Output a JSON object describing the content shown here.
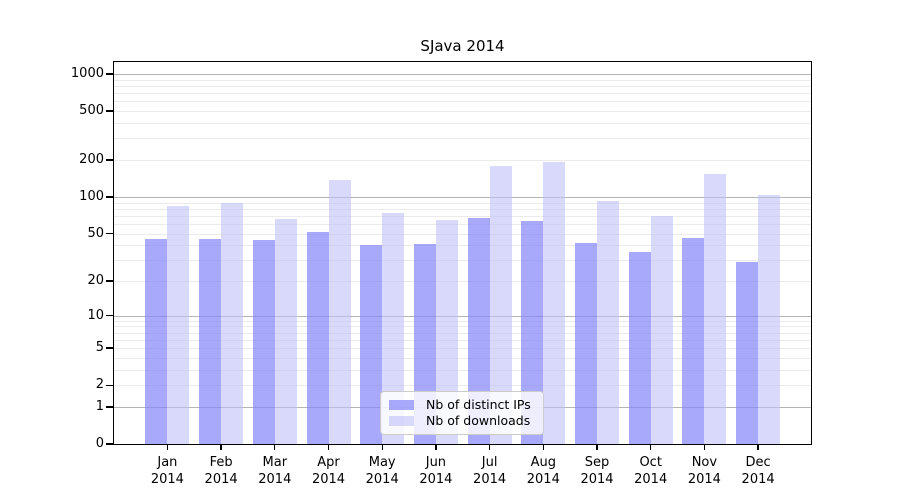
{
  "chart_data": {
    "type": "bar",
    "title": "SJava 2014",
    "categories": [
      "Jan 2014",
      "Feb 2014",
      "Mar 2014",
      "Apr 2014",
      "May 2014",
      "Jun 2014",
      "Jul 2014",
      "Aug 2014",
      "Sep 2014",
      "Oct 2014",
      "Nov 2014",
      "Dec 2014"
    ],
    "series": [
      {
        "name": "Nb of distinct IPs",
        "color": "rgba(132,132,250,0.7)",
        "values": [
          45,
          45,
          44,
          51,
          40,
          41,
          67,
          63,
          42,
          35,
          46,
          29
        ]
      },
      {
        "name": "Nb of downloads",
        "color": "rgba(192,192,250,0.6)",
        "values": [
          85,
          90,
          66,
          138,
          74,
          65,
          180,
          193,
          93,
          70,
          155,
          103
        ]
      }
    ],
    "yticks": [
      0,
      1,
      2,
      5,
      10,
      20,
      50,
      100,
      200,
      500,
      1000
    ],
    "scale": "log(1+x)",
    "ylim": [
      0,
      1250
    ],
    "grid": true,
    "legend_position": "lower center",
    "colors": {
      "major_grid": "#b5b5b5",
      "minor_grid": "#ebebeb",
      "axis": "#000000",
      "background": "#ffffff"
    }
  }
}
